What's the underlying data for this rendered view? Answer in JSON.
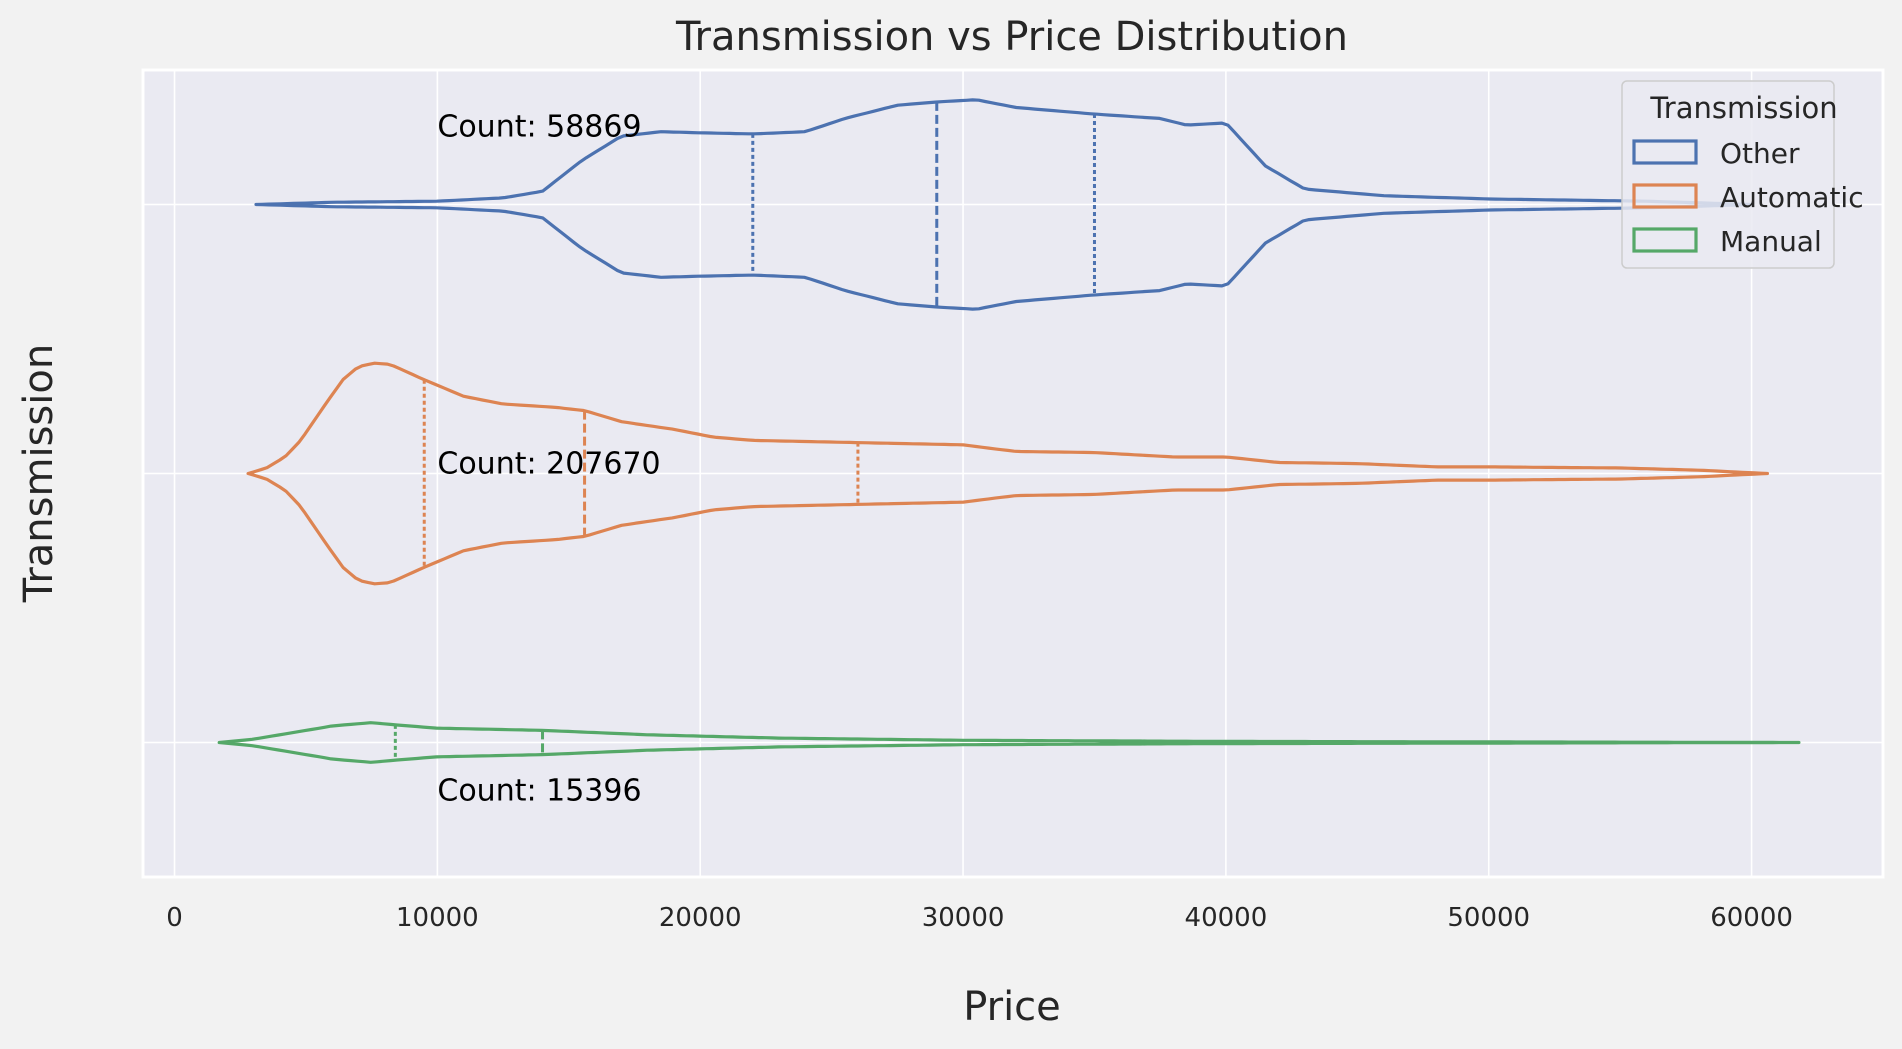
{
  "chart_data": {
    "type": "violin",
    "orientation": "horizontal",
    "title": "Transmission vs Price Distribution",
    "xlabel": "Price",
    "ylabel": "Transmission",
    "xlim": [
      -1200,
      65000
    ],
    "xticks": [
      0,
      10000,
      20000,
      30000,
      40000,
      50000,
      60000
    ],
    "grid": true,
    "inner": "quartile",
    "legend": {
      "title": "Transmission",
      "placement": "top-right",
      "entries": [
        "Other",
        "Automatic",
        "Manual"
      ]
    },
    "series": [
      {
        "name": "Other",
        "color": "#4c72b0",
        "count_label": "Count: 58869",
        "range": [
          3100,
          60000
        ],
        "quartiles": [
          22000,
          29000,
          35000
        ],
        "density": [
          [
            3100,
            0.0
          ],
          [
            6000,
            0.02
          ],
          [
            10000,
            0.03
          ],
          [
            12500,
            0.06
          ],
          [
            14000,
            0.12
          ],
          [
            15500,
            0.4
          ],
          [
            17000,
            0.62
          ],
          [
            18500,
            0.66
          ],
          [
            20000,
            0.65
          ],
          [
            22000,
            0.64
          ],
          [
            24000,
            0.66
          ],
          [
            25500,
            0.78
          ],
          [
            27500,
            0.9
          ],
          [
            29000,
            0.93
          ],
          [
            30500,
            0.95
          ],
          [
            32000,
            0.88
          ],
          [
            35000,
            0.82
          ],
          [
            37500,
            0.78
          ],
          [
            38500,
            0.72
          ],
          [
            40000,
            0.74
          ],
          [
            41500,
            0.35
          ],
          [
            43000,
            0.14
          ],
          [
            46000,
            0.08
          ],
          [
            50000,
            0.05
          ],
          [
            53000,
            0.04
          ],
          [
            56000,
            0.03
          ],
          [
            60000,
            0.0
          ]
        ]
      },
      {
        "name": "Automatic",
        "color": "#dd8452",
        "count_label": "Count: 207670",
        "range": [
          2800,
          60600
        ],
        "quartiles": [
          9500,
          15600,
          26000
        ],
        "density": [
          [
            2800,
            0.0
          ],
          [
            3500,
            0.05
          ],
          [
            4200,
            0.15
          ],
          [
            4800,
            0.3
          ],
          [
            5600,
            0.58
          ],
          [
            6400,
            0.85
          ],
          [
            7000,
            0.97
          ],
          [
            7600,
            1.0
          ],
          [
            8200,
            0.99
          ],
          [
            9500,
            0.85
          ],
          [
            11000,
            0.7
          ],
          [
            12500,
            0.63
          ],
          [
            14500,
            0.6
          ],
          [
            15600,
            0.57
          ],
          [
            17000,
            0.47
          ],
          [
            19000,
            0.4
          ],
          [
            20500,
            0.33
          ],
          [
            22000,
            0.3
          ],
          [
            24000,
            0.29
          ],
          [
            26000,
            0.28
          ],
          [
            28000,
            0.27
          ],
          [
            30000,
            0.26
          ],
          [
            32000,
            0.2
          ],
          [
            35000,
            0.19
          ],
          [
            38000,
            0.15
          ],
          [
            40000,
            0.15
          ],
          [
            42000,
            0.1
          ],
          [
            45000,
            0.09
          ],
          [
            48000,
            0.06
          ],
          [
            50000,
            0.06
          ],
          [
            55000,
            0.05
          ],
          [
            58000,
            0.03
          ],
          [
            60600,
            0.0
          ]
        ]
      },
      {
        "name": "Manual",
        "color": "#55a868",
        "count_label": "Count: 15396",
        "range": [
          1700,
          61800
        ],
        "quartiles": [
          8400,
          14000
        ],
        "density": [
          [
            1700,
            0.0
          ],
          [
            3000,
            0.03
          ],
          [
            4500,
            0.09
          ],
          [
            6000,
            0.15
          ],
          [
            7500,
            0.18
          ],
          [
            8400,
            0.16
          ],
          [
            10000,
            0.13
          ],
          [
            14000,
            0.11
          ],
          [
            18000,
            0.07
          ],
          [
            23000,
            0.04
          ],
          [
            30000,
            0.02
          ],
          [
            40000,
            0.01
          ],
          [
            61800,
            0.0
          ]
        ]
      }
    ]
  }
}
